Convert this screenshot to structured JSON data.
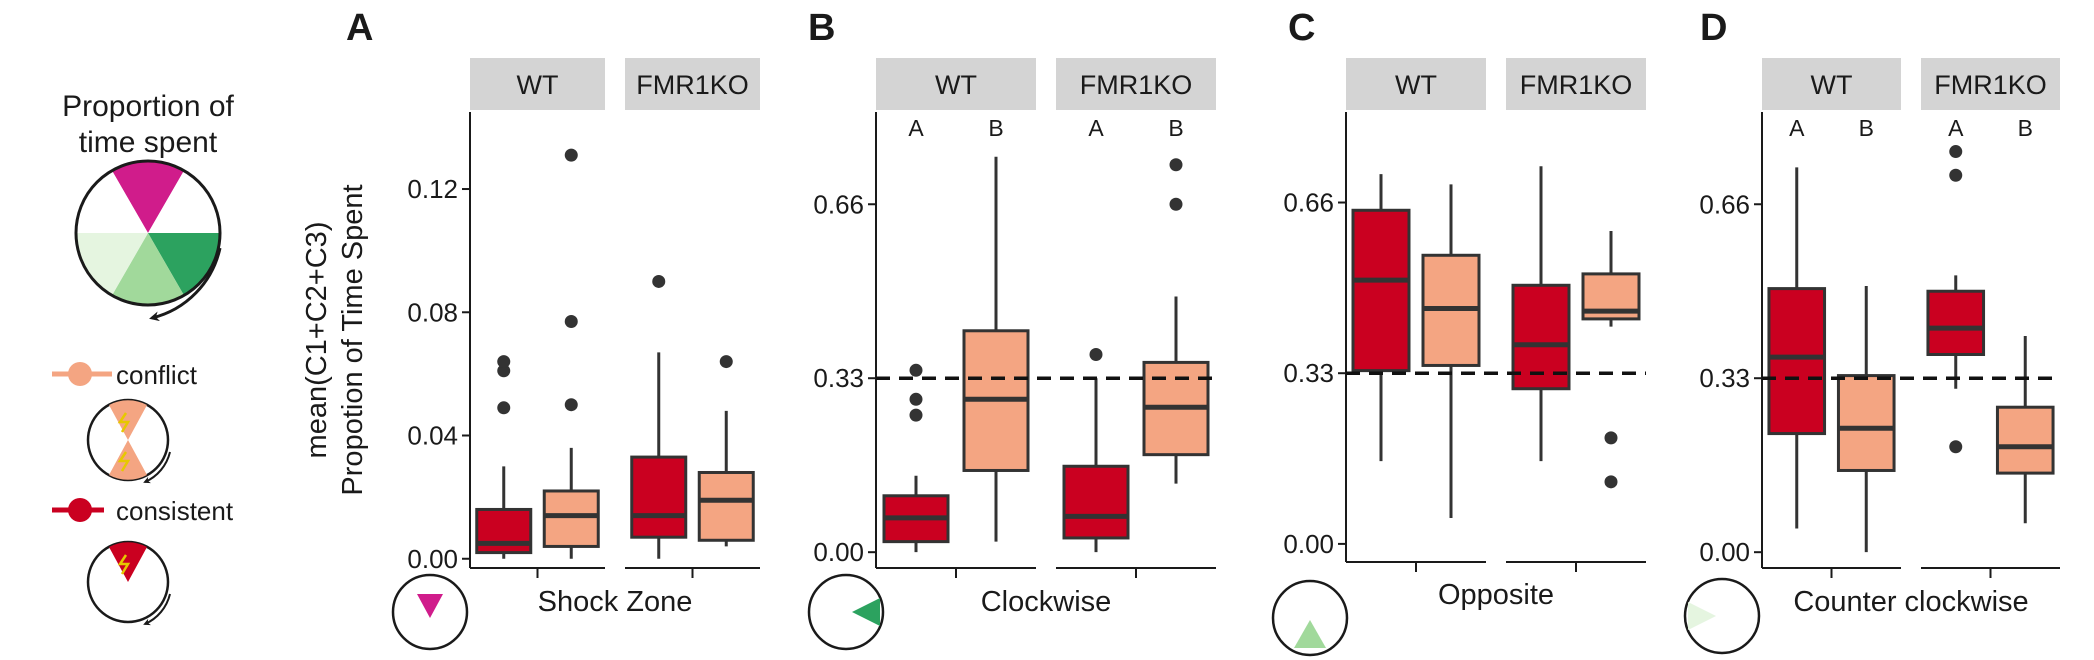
{
  "legend": {
    "title_line1": "Proportion of",
    "title_line2": "time spent",
    "conflict_label": "conflict",
    "consistent_label": "consistent",
    "colors": {
      "conflict": "#f4a582",
      "consistent": "#ca0020",
      "shock": "#d01c8b",
      "clockwise": "#2ca25f",
      "opposite": "#a1d99b",
      "counter_clockwise": "#e5f5e0"
    }
  },
  "y_label_line1": "mean(C1+C2+C3)",
  "y_label_line2": "Propotion of Time Spent",
  "chart_data": [
    {
      "type": "box",
      "panel": "A",
      "xlabel": "Shock Zone",
      "zone_color": "#d01c8b",
      "zone_direction": "up",
      "ylim": [
        -0.003,
        0.145
      ],
      "yticks": [
        0.0,
        0.04,
        0.08,
        0.12
      ],
      "ytick_labels": [
        "0.00",
        "0.04",
        "0.08",
        "0.12"
      ],
      "reference_line": null,
      "facets": [
        {
          "label": "WT",
          "letters": [
            "",
            ""
          ],
          "boxes": [
            {
              "group": "consistent",
              "color": "#ca0020",
              "whisker_low": 0.0,
              "q1": 0.002,
              "median": 0.005,
              "q3": 0.016,
              "whisker_high": 0.03,
              "outliers": [
                0.049,
                0.061,
                0.064
              ]
            },
            {
              "group": "conflict",
              "color": "#f4a582",
              "whisker_low": 0.0,
              "q1": 0.004,
              "median": 0.014,
              "q3": 0.022,
              "whisker_high": 0.036,
              "outliers": [
                0.05,
                0.077,
                0.131
              ]
            }
          ]
        },
        {
          "label": "FMR1KO",
          "letters": [
            "",
            ""
          ],
          "boxes": [
            {
              "group": "consistent",
              "color": "#ca0020",
              "whisker_low": 0.0,
              "q1": 0.007,
              "median": 0.014,
              "q3": 0.033,
              "whisker_high": 0.067,
              "outliers": [
                0.09
              ]
            },
            {
              "group": "conflict",
              "color": "#f4a582",
              "whisker_low": 0.004,
              "q1": 0.006,
              "median": 0.019,
              "q3": 0.028,
              "whisker_high": 0.048,
              "outliers": [
                0.064
              ]
            }
          ]
        }
      ]
    },
    {
      "type": "box",
      "panel": "B",
      "xlabel": "Clockwise",
      "zone_color": "#2ca25f",
      "zone_direction": "left",
      "ylim": [
        -0.03,
        0.835
      ],
      "yticks": [
        0.0,
        0.33,
        0.66
      ],
      "ytick_labels": [
        "0.00",
        "0.33",
        "0.66"
      ],
      "reference_line": 0.33,
      "facets": [
        {
          "label": "WT",
          "letters": [
            "A",
            "B"
          ],
          "boxes": [
            {
              "group": "consistent",
              "color": "#ca0020",
              "whisker_low": 0.0,
              "q1": 0.02,
              "median": 0.065,
              "q3": 0.107,
              "whisker_high": 0.145,
              "outliers": [
                0.26,
                0.29,
                0.345
              ]
            },
            {
              "group": "conflict",
              "color": "#f4a582",
              "whisker_low": 0.02,
              "q1": 0.155,
              "median": 0.29,
              "q3": 0.42,
              "whisker_high": 0.75,
              "outliers": []
            }
          ]
        },
        {
          "label": "FMR1KO",
          "letters": [
            "A",
            "B"
          ],
          "boxes": [
            {
              "group": "consistent",
              "color": "#ca0020",
              "whisker_low": 0.0,
              "q1": 0.027,
              "median": 0.068,
              "q3": 0.163,
              "whisker_high": 0.33,
              "outliers": [
                0.375
              ]
            },
            {
              "group": "conflict",
              "color": "#f4a582",
              "whisker_low": 0.13,
              "q1": 0.185,
              "median": 0.275,
              "q3": 0.36,
              "whisker_high": 0.485,
              "outliers": [
                0.66,
                0.735
              ]
            }
          ]
        }
      ]
    },
    {
      "type": "box",
      "panel": "C",
      "xlabel": "Opposite",
      "zone_color": "#a1d99b",
      "zone_direction": "up",
      "ylim": [
        -0.035,
        0.835
      ],
      "yticks": [
        0.0,
        0.33,
        0.66
      ],
      "ytick_labels": [
        "0.00",
        "0.33",
        "0.66"
      ],
      "reference_line": 0.33,
      "facets": [
        {
          "label": "WT",
          "letters": [
            "",
            ""
          ],
          "boxes": [
            {
              "group": "consistent",
              "color": "#ca0020",
              "whisker_low": 0.16,
              "q1": 0.335,
              "median": 0.51,
              "q3": 0.645,
              "whisker_high": 0.715,
              "outliers": []
            },
            {
              "group": "conflict",
              "color": "#f4a582",
              "whisker_low": 0.05,
              "q1": 0.345,
              "median": 0.455,
              "q3": 0.558,
              "whisker_high": 0.695,
              "outliers": []
            }
          ]
        },
        {
          "label": "FMR1KO",
          "letters": [
            "",
            ""
          ],
          "boxes": [
            {
              "group": "consistent",
              "color": "#ca0020",
              "whisker_low": 0.16,
              "q1": 0.3,
              "median": 0.385,
              "q3": 0.5,
              "whisker_high": 0.73,
              "outliers": []
            },
            {
              "group": "conflict",
              "color": "#f4a582",
              "whisker_low": 0.42,
              "q1": 0.435,
              "median": 0.45,
              "q3": 0.522,
              "whisker_high": 0.605,
              "outliers": [
                0.12,
                0.205
              ]
            }
          ]
        }
      ]
    },
    {
      "type": "box",
      "panel": "D",
      "xlabel": "Counter clockwise",
      "zone_color": "#e5f5e0",
      "zone_direction": "right",
      "ylim": [
        -0.03,
        0.835
      ],
      "yticks": [
        0.0,
        0.33,
        0.66
      ],
      "ytick_labels": [
        "0.00",
        "0.33",
        "0.66"
      ],
      "reference_line": 0.33,
      "facets": [
        {
          "label": "WT",
          "letters": [
            "A",
            "B"
          ],
          "boxes": [
            {
              "group": "consistent",
              "color": "#ca0020",
              "whisker_low": 0.045,
              "q1": 0.225,
              "median": 0.37,
              "q3": 0.5,
              "whisker_high": 0.73,
              "outliers": []
            },
            {
              "group": "conflict",
              "color": "#f4a582",
              "whisker_low": 0.0,
              "q1": 0.155,
              "median": 0.235,
              "q3": 0.335,
              "whisker_high": 0.505,
              "outliers": []
            }
          ]
        },
        {
          "label": "FMR1KO",
          "letters": [
            "A",
            "B"
          ],
          "boxes": [
            {
              "group": "consistent",
              "color": "#ca0020",
              "whisker_low": 0.31,
              "q1": 0.375,
              "median": 0.425,
              "q3": 0.495,
              "whisker_high": 0.525,
              "outliers": [
                0.2,
                0.715,
                0.76
              ]
            },
            {
              "group": "conflict",
              "color": "#f4a582",
              "whisker_low": 0.055,
              "q1": 0.15,
              "median": 0.2,
              "q3": 0.275,
              "whisker_high": 0.41,
              "outliers": []
            }
          ]
        }
      ]
    }
  ]
}
